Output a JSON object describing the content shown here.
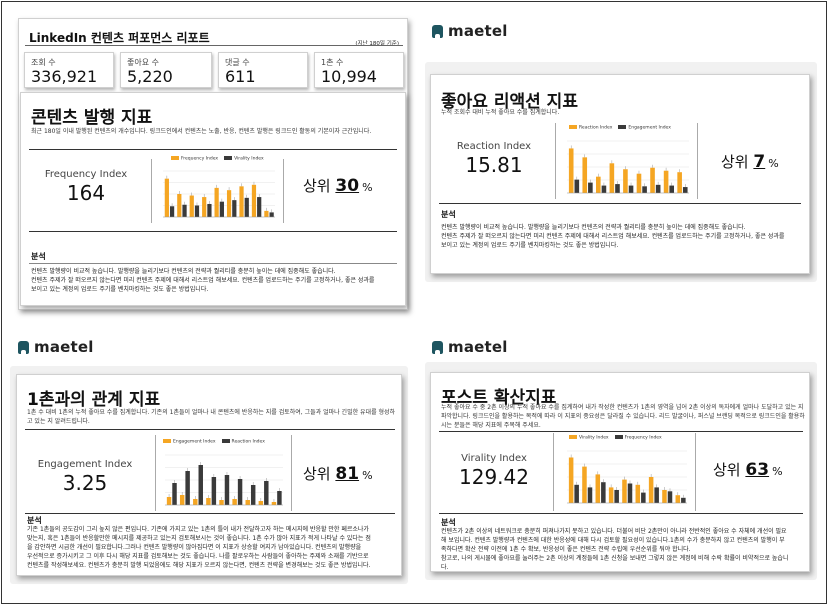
{
  "report": {
    "title": "LinkedIn 컨텐츠 퍼포먼스 리포트",
    "period": "(지난 180일 기준)",
    "stats": [
      {
        "label": "조회 수",
        "value": "336,921"
      },
      {
        "label": "좋아요 수",
        "value": "5,220"
      },
      {
        "label": "댓글 수",
        "value": "611"
      },
      {
        "label": "1촌 수",
        "value": "10,994"
      }
    ]
  },
  "logo": {
    "word": "maetel",
    "icon": "maetel-logo-icon"
  },
  "colors": {
    "accent": "#f5a623",
    "series2": "#3a3a3a",
    "brand": "#1e5560"
  },
  "legend": {
    "frequency": "Frequency Index",
    "virality": "Virality Index",
    "reaction": "Reaction Index",
    "engagement": "Engagement Index"
  },
  "rank_prefix": "상위",
  "rank_suffix": "%",
  "analysis_label": "분석",
  "cards": {
    "frequency": {
      "title": "콘텐츠 발행 지표",
      "desc": "최근 180일 이내 발행된 컨텐츠의 개수입니다. 링크드인에서 컨텐츠는 노출, 반응, 컨텐츠 발행은 링크드인 활동의 기본이자 근간입니다.",
      "index_label": "Frequency Index",
      "index_value": "164",
      "rank": "30",
      "analysis": [
        "컨텐츠 발행량이 비교적 높습니다. 발행량을 늘리기보다 컨텐츠의 전략과 퀄리티를 충분히 높이는 데에 집중해도 좋습니다.",
        "컨텐츠 주제가 잘 떠오르지 않는다면 미리 컨텐츠 주제에 대해서 리스트업 해보세요. 컨텐츠를 업로드하는 주기를 고정하거나, 좋은 성과를",
        "보이고 있는 계정의 업로드 주기를 벤치마킹하는 것도 좋은 방법입니다."
      ]
    },
    "reaction": {
      "title": "좋아요 리액션 지표",
      "desc": "누적 조회수 대비 누적 좋아요 수를 집계합니다.",
      "index_label": "Reaction Index",
      "index_value": "15.81",
      "rank": "7",
      "analysis": [
        "컨텐츠 발행량이 비교적 높습니다. 발행량을 늘리기보다 컨텐츠의 전략과 퀄리티를 충분히 높이는 데에 집중해도 좋습니다.",
        "컨텐츠 주제가 잘 떠오르지 않는다면 미리 컨텐츠 주제에 대해서 리스트업 해보세요. 컨텐츠를 업로드하는 주기를 고정하거나, 좋은 성과를",
        "보이고 있는 계정의 업로드 주기를 벤치마킹하는 것도 좋은 방법입니다."
      ]
    },
    "engagement": {
      "title": "1촌과의 관계 지표",
      "desc": "1촌 수 대비 1촌의 누적 좋아요 수를 집계합니다. 기존의 1촌들이 얼마나 내 콘텐츠에 반응하는 지를 검토하여, 그들과 얼마나 긴밀한 유대를 형성하고 있는 지 알려드립니다.",
      "index_label": "Engagement Index",
      "index_value": "3.25",
      "rank": "81",
      "analysis": [
        "기존 1촌들의 공도감이 그리 높지 않은 편입니다. 기존에 가지고 있는 1촌의 틀이 내가 전달하고자 하는 메시지에 반응할 만한 페르소나가",
        "맞는지, 혹은 1촌들이 반응할만한 메시지를 제공하고 있는지 검토해보시는 것이 좋습니다. 1촌 수가 많아 지표가 적게 나타날 수 있다는 점",
        "을 감안하면 시급한 개선이 필요합니다.그러나 컨텐츠 발행량이 많아집다면 이 지표가 상승할 여지가 남아있습니다. 컨텐츠의 발행량을",
        "우선적으로 증가시키고 그 이후 다시 해당 지표를 검토해보는 것도 좋습니다. 나를 팔로우하는 사람들이 좋아하는 주제와 소재를 기반으로",
        "컨텐츠를 작성해보세요. 컨텐츠가 충분히 발행 되었음에도 해당 지표가 오르지 않는다면, 컨텐츠 전략을 변경해보는 것도 좋은 방법입니다."
      ]
    },
    "virality": {
      "title": "포스트 확산지표",
      "desc": "누적 좋아요 수 중 2촌 이상의 누적 좋아요 수를 집계하여 내가 작성한 컨텐츠가 1촌의 영역을 넘어 2촌 이상의 독자에게 얼마나 도달하고 있는 지 파악합니다. 링크드인을 활용하는 목적에 따라 이 지표의 중요성은 달라질 수 있습니다. 리드 발굴이나, 퍼스널 브랜딩 목적으로 링크드인을 활용하시는 분들은 해당 지표에 주목해 주세요.",
      "index_label": "Virality Index",
      "index_value": "129.42",
      "rank": "63",
      "analysis": [
        "컨텐츠가 2촌 이상의 네트워크로 충분히 퍼져나가지 못하고 있습니다. 더불어 비단 2촌만이 아니라 전반적인 좋아요 수 자체에 개선이 필요",
        "해 보입니다. 컨텐츠 발행량과 컨텐츠에 대한 반응성에 대해 다시 검토할 필요성이 있습니다.1촌의 수가 충분하지 않고 컨텐츠의 발행이 부",
        "족하다면 확산 전략 이전에 1촌 수 확보, 반응성이 좋은 컨텐츠 전략 수립에 우선순위를 둬야 합니다.",
        "참고로, 나의 게시물에 좋아요를 눌러주는 2촌 이상의 계정들에 1촌 신청을 보내면 그렇지 않은 계정에 비해 수락 확률이 비약적으로 높습니",
        "다."
      ]
    }
  },
  "chart_data": [
    {
      "type": "bar",
      "title": "",
      "series": [
        {
          "name": "Frequency Index",
          "values": [
            50,
            30,
            28,
            26,
            38,
            35,
            40,
            42,
            8
          ]
        },
        {
          "name": "Virality Index",
          "values": [
            14,
            16,
            15,
            17,
            20,
            22,
            25,
            26,
            6
          ]
        }
      ],
      "ylim": [
        0,
        60
      ]
    },
    {
      "type": "bar",
      "title": "",
      "series": [
        {
          "name": "Reaction Index",
          "values": [
            60,
            48,
            22,
            40,
            32,
            26,
            34,
            30,
            28
          ]
        },
        {
          "name": "Engagement Index",
          "values": [
            18,
            14,
            10,
            12,
            10,
            9,
            11,
            10,
            8
          ]
        }
      ],
      "ylim": [
        0,
        70
      ]
    },
    {
      "type": "bar",
      "title": "",
      "series": [
        {
          "name": "Engagement Index",
          "values": [
            8,
            10,
            6,
            7,
            5,
            6,
            5,
            4,
            3
          ]
        },
        {
          "name": "Reaction Index",
          "values": [
            22,
            34,
            40,
            28,
            30,
            26,
            20,
            24,
            14
          ]
        }
      ],
      "ylim": [
        0,
        50
      ]
    },
    {
      "type": "bar",
      "title": "",
      "series": [
        {
          "name": "Virality Index",
          "values": [
            35,
            28,
            22,
            12,
            18,
            14,
            20,
            10,
            6
          ]
        },
        {
          "name": "Frequency Index",
          "values": [
            14,
            12,
            16,
            10,
            15,
            8,
            12,
            9,
            4
          ]
        }
      ],
      "ylim": [
        0,
        40
      ]
    }
  ]
}
